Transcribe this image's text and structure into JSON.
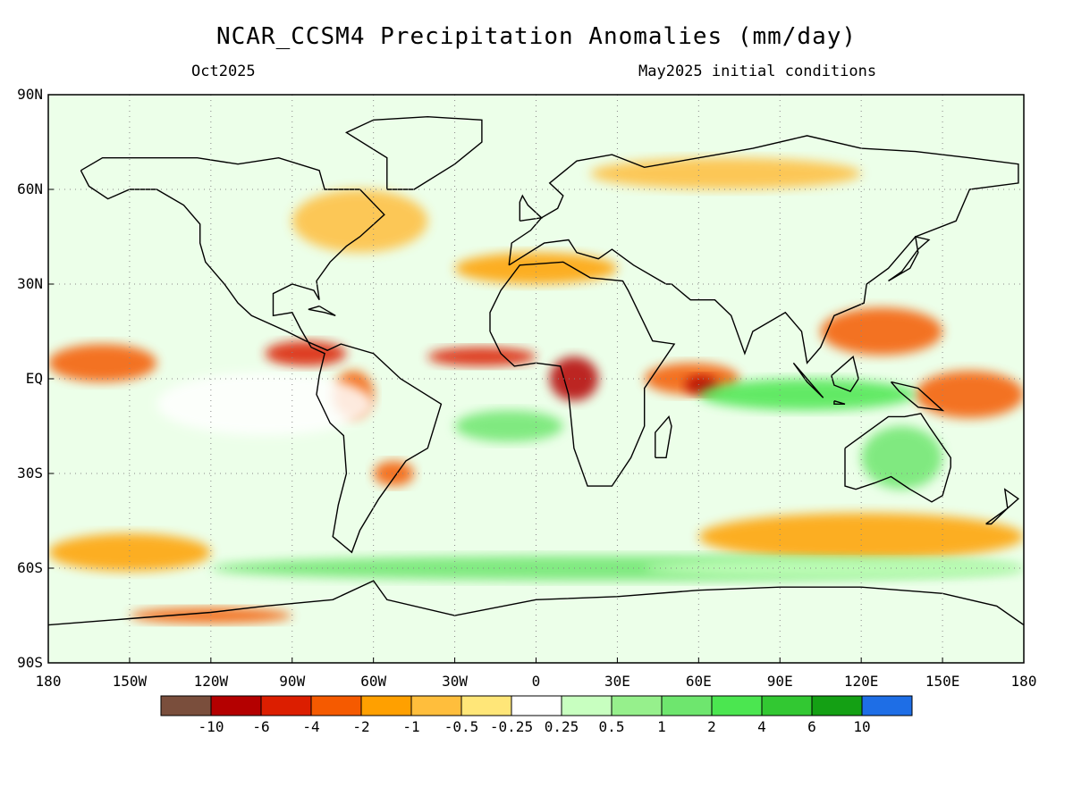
{
  "title": "NCAR_CCSM4 Precipitation Anomalies (mm/day)",
  "valid_month": "Oct2025",
  "initial_conditions": "May2025 initial conditions",
  "chart_data": {
    "type": "heatmap",
    "map_projection": "equirectangular",
    "lon_range": [
      -180,
      180
    ],
    "lat_range": [
      -90,
      90
    ],
    "grid_lines": true,
    "lat_ticks": [
      "90N",
      "60N",
      "30N",
      "EQ",
      "30S",
      "60S",
      "90S"
    ],
    "lon_ticks": [
      "180",
      "150W",
      "120W",
      "90W",
      "60W",
      "30W",
      "0",
      "30E",
      "60E",
      "90E",
      "120E",
      "150E",
      "180"
    ],
    "colorbar": {
      "placement": "bottom",
      "colors": [
        "#7a4e3c",
        "#b40000",
        "#dc1e00",
        "#f55a00",
        "#ffa000",
        "#ffbe3c",
        "#ffe678",
        "#ffffff",
        "#c8ffc0",
        "#96f08c",
        "#6ee66e",
        "#4be650",
        "#32c832",
        "#14a014",
        "#1e6ee6"
      ],
      "labels": [
        "-10",
        "-6",
        "-4",
        "-2",
        "-1",
        "-0.5",
        "-0.25",
        "0.25",
        "0.5",
        "1",
        "2",
        "4",
        "6",
        "10"
      ]
    },
    "anomaly_regions": [
      {
        "lon": -180,
        "lat": 5,
        "w": 40,
        "h": 12,
        "level": "-2"
      },
      {
        "lon": -100,
        "lat": 8,
        "w": 30,
        "h": 8,
        "level": "-4"
      },
      {
        "lon": -40,
        "lat": 7,
        "w": 40,
        "h": 6,
        "level": "-4"
      },
      {
        "lon": 5,
        "lat": 0,
        "w": 18,
        "h": 14,
        "level": "-6"
      },
      {
        "lon": 40,
        "lat": 0,
        "w": 35,
        "h": 10,
        "level": "-2"
      },
      {
        "lon": 55,
        "lat": -2,
        "w": 12,
        "h": 6,
        "level": "-6"
      },
      {
        "lon": 105,
        "lat": 15,
        "w": 45,
        "h": 15,
        "level": "-2"
      },
      {
        "lon": 140,
        "lat": -5,
        "w": 40,
        "h": 15,
        "level": "-2"
      },
      {
        "lon": -75,
        "lat": -5,
        "w": 15,
        "h": 15,
        "level": "-2"
      },
      {
        "lon": -60,
        "lat": -30,
        "w": 15,
        "h": 8,
        "level": "-2"
      },
      {
        "lon": -140,
        "lat": -8,
        "w": 80,
        "h": 20,
        "level": "0"
      },
      {
        "lon": -30,
        "lat": -15,
        "w": 40,
        "h": 10,
        "level": "1"
      },
      {
        "lon": 60,
        "lat": -5,
        "w": 80,
        "h": 10,
        "level": "2"
      },
      {
        "lon": 120,
        "lat": -25,
        "w": 30,
        "h": 20,
        "level": "1"
      },
      {
        "lon": -180,
        "lat": -55,
        "w": 60,
        "h": 12,
        "level": "-1"
      },
      {
        "lon": 60,
        "lat": -50,
        "w": 120,
        "h": 15,
        "level": "-1"
      },
      {
        "lon": -120,
        "lat": -60,
        "w": 300,
        "h": 8,
        "level": "1"
      },
      {
        "lon": -150,
        "lat": -75,
        "w": 60,
        "h": 5,
        "level": "-2"
      },
      {
        "lon": -90,
        "lat": 50,
        "w": 50,
        "h": 20,
        "level": "-0.5"
      },
      {
        "lon": -30,
        "lat": 35,
        "w": 60,
        "h": 10,
        "level": "-1"
      },
      {
        "lon": 20,
        "lat": 65,
        "w": 100,
        "h": 10,
        "level": "-0.5"
      },
      {
        "lon": 40,
        "lat": -60,
        "w": 140,
        "h": 6,
        "level": "0.5"
      }
    ]
  }
}
